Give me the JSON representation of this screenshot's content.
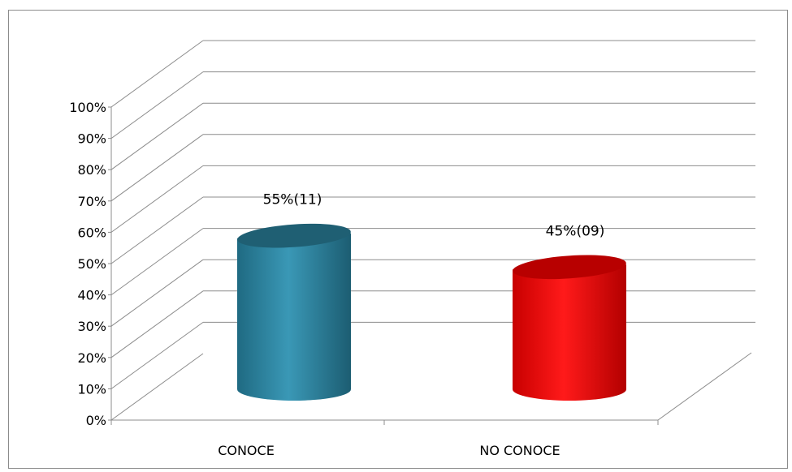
{
  "chart_data": {
    "type": "bar",
    "style": "3d-cylinder",
    "categories": [
      "CONOCE",
      "NO CONOCE"
    ],
    "values": [
      55,
      45
    ],
    "data_labels": [
      "55%(11)",
      "45%(09)"
    ],
    "colors": [
      "#2e87a3",
      "#ee0000"
    ],
    "ylim": [
      0,
      100
    ],
    "y_ticks": [
      "0%",
      "10%",
      "20%",
      "30%",
      "40%",
      "50%",
      "60%",
      "70%",
      "80%",
      "90%",
      "100%"
    ],
    "grid": true,
    "legend": "none",
    "title": "",
    "xlabel": "",
    "ylabel": ""
  }
}
